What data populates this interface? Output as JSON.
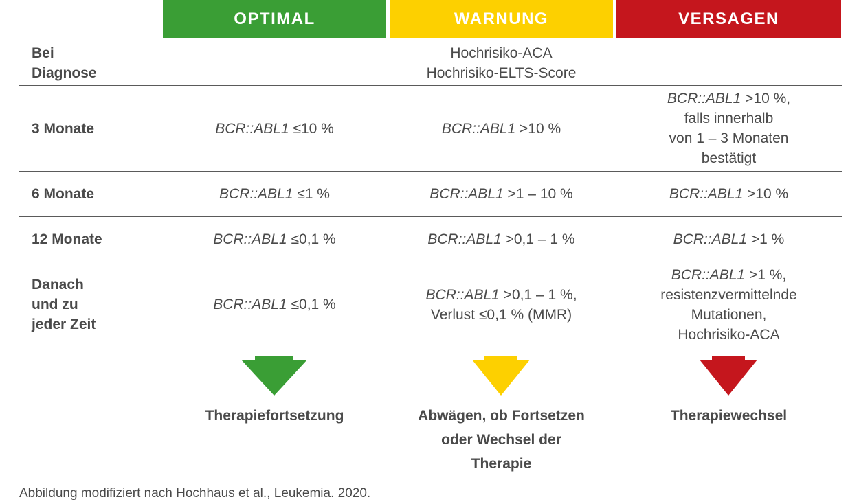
{
  "headers": {
    "optimal": "OPTIMAL",
    "warnung": "WARNUNG",
    "versagen": "VERSAGEN"
  },
  "colors": {
    "optimal": "#3a9e35",
    "warnung": "#fdd000",
    "versagen": "#c5161d",
    "rule": "#5a5a5a",
    "text": "#4a4a4a"
  },
  "rows": {
    "diagnose": {
      "label_line1": "Bei",
      "label_line2": "Diagnose",
      "warnung_line1": "Hochrisiko-ACA",
      "warnung_line2": "Hochrisiko-ELTS-Score"
    },
    "m3": {
      "label": "3 Monate",
      "gene": "BCR::ABL1",
      "optimal": "≤10 %",
      "warnung": ">10 %",
      "versagen_line1": ">10 %,",
      "versagen_line2": "falls innerhalb",
      "versagen_line3": "von 1 – 3 Monaten",
      "versagen_line4": "bestätigt"
    },
    "m6": {
      "label": "6 Monate",
      "gene": "BCR::ABL1",
      "optimal": "≤1 %",
      "warnung": ">1 – 10 %",
      "versagen": ">10 %"
    },
    "m12": {
      "label": "12 Monate",
      "gene": "BCR::ABL1",
      "optimal": "≤0,1 %",
      "warnung": ">0,1 – 1 %",
      "versagen": ">1 %"
    },
    "danach": {
      "label_line1": "Danach",
      "label_line2": "und zu",
      "label_line3": "jeder Zeit",
      "gene": "BCR::ABL1",
      "optimal": "≤0,1 %",
      "warnung_line1": ">0,1 – 1 %,",
      "warnung_line2": "Verlust ≤0,1 % (MMR)",
      "versagen_line1": ">1 %,",
      "versagen_line2": "resistenzvermittelnde",
      "versagen_line3": "Mutationen,",
      "versagen_line4": "Hochrisiko-ACA"
    }
  },
  "results": {
    "optimal": "Therapiefortsetzung",
    "warnung_line1": "Abwägen, ob Fortsetzen",
    "warnung_line2": "oder Wechsel der",
    "warnung_line3": "Therapie",
    "versagen": "Therapiewechsel"
  },
  "footnote": "Abbildung modifiziert nach Hochhaus et al., Leukemia. 2020.",
  "icons": [
    "down-arrow-icon"
  ]
}
